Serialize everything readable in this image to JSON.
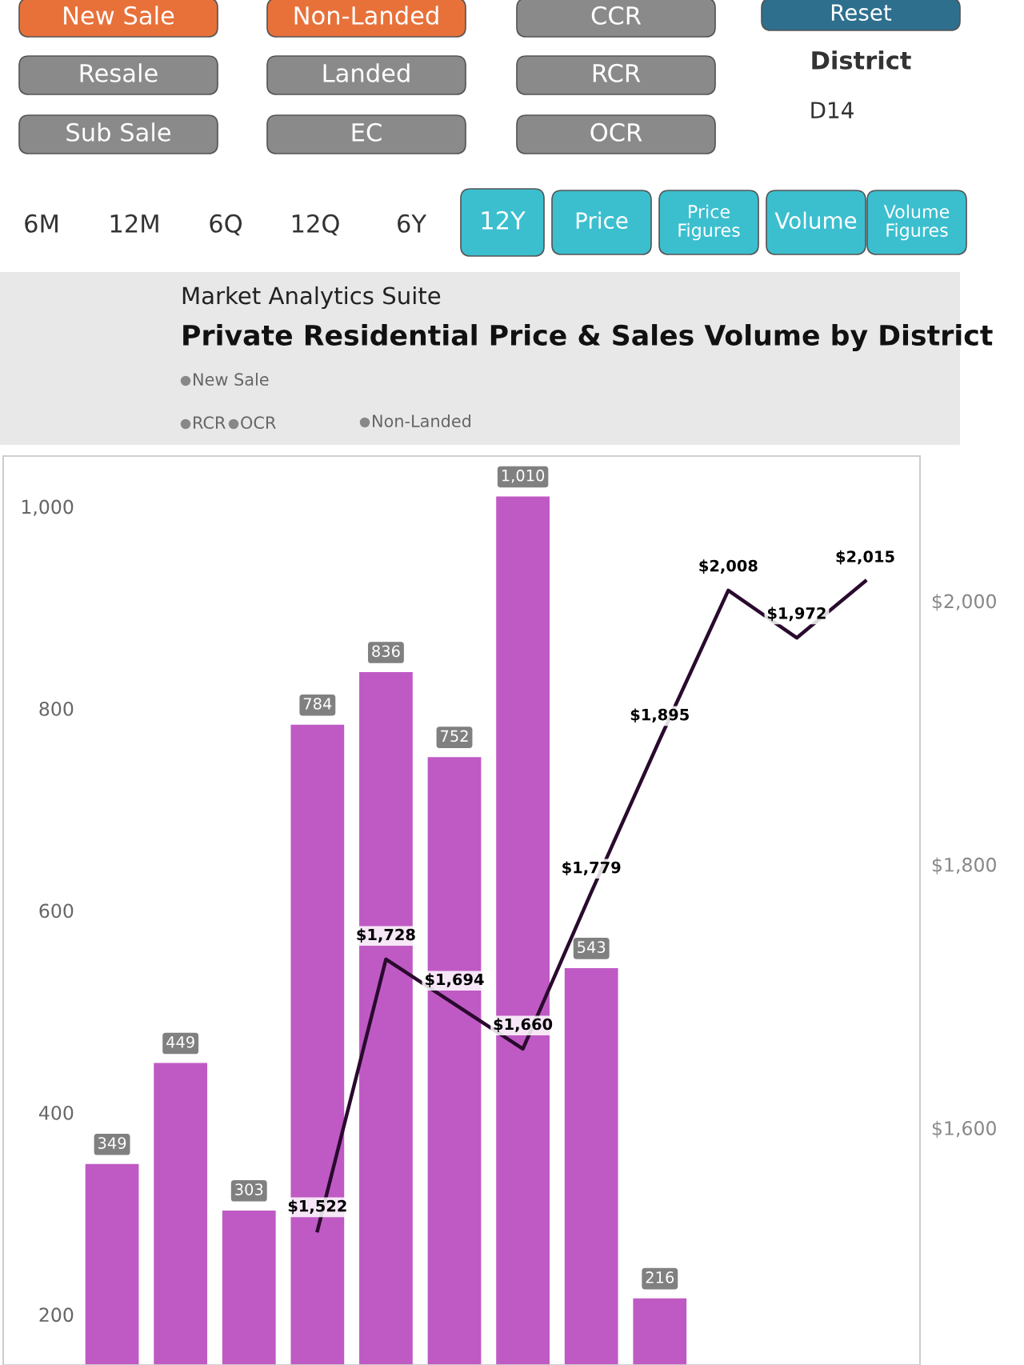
{
  "chart_data": [
    {
      "type": "other",
      "annotations": [
        "New Sale",
        "Resale",
        "Sub Sale",
        "Non-Landed",
        "Landed",
        "EC",
        "CCR",
        "RCR",
        "OCR",
        "Reset",
        "District",
        "D14",
        "6M",
        "12M",
        "6Q",
        "12Q",
        "6Y",
        "12Y",
        "Price",
        "Price\nFigures",
        "Volume",
        "Volume\nFigures"
      ],
      "colors": [
        "#e8713a",
        "#8a8a8a",
        "#8a8a8a",
        "#e8713a",
        "#8a8a8a",
        "#8a8a8a",
        "#8a8a8a",
        "#8a8a8a",
        "#8a8a8a",
        "#2e6f8e",
        null,
        null,
        null,
        null,
        null,
        null,
        null,
        "#3bbfcf",
        "#3bbfcf",
        "#3bbfcf",
        "#3bbfcf",
        "#3bbfcf"
      ]
    },
    {
      "type": "bar",
      "subtitle": "Market Analytics Suite",
      "title": "Private Residential Price & Sales Volume by District",
      "annotations": [
        "New Sale",
        "RCR",
        "OCR",
        "Non-Landed"
      ],
      "categories": [
        null,
        null,
        null,
        null,
        null,
        null,
        null,
        null,
        null,
        null,
        null,
        null
      ],
      "series": [
        {
          "type": "bar",
          "color": "#bf5ac4",
          "values": [
            349,
            449,
            303,
            784,
            836,
            752,
            1010,
            543,
            216,
            null,
            null,
            null
          ],
          "value_labels": [
            "349",
            "449",
            "303",
            "784",
            "836",
            "752",
            "1,010",
            "543",
            "216",
            null,
            null,
            null
          ]
        },
        {
          "type": "line",
          "axis": "y2",
          "color": "#2a0a2e",
          "values": [
            null,
            null,
            null,
            1522,
            1728,
            1694,
            1660,
            1779,
            1895,
            2008,
            1972,
            2015
          ],
          "value_labels": [
            null,
            null,
            null,
            "$1,522",
            "$1,728",
            "$1,694",
            "$1,660",
            "$1,779",
            "$1,895",
            "$2,008",
            "$1,972",
            "$2,015"
          ]
        }
      ],
      "ylim": [
        150,
        1050
      ],
      "yticks": [
        200,
        400,
        600,
        800,
        {
          "value": 1000,
          "label": "1,000"
        }
      ],
      "y2lim": [
        1420,
        2110
      ],
      "y2ticks": [
        {
          "value": 1600,
          "label": "$1,600"
        },
        {
          "value": 1800,
          "label": "$1,800"
        },
        {
          "value": 2000,
          "label": "$2,000"
        }
      ],
      "tick_labels": "y",
      "grid": false,
      "legend": false
    }
  ]
}
